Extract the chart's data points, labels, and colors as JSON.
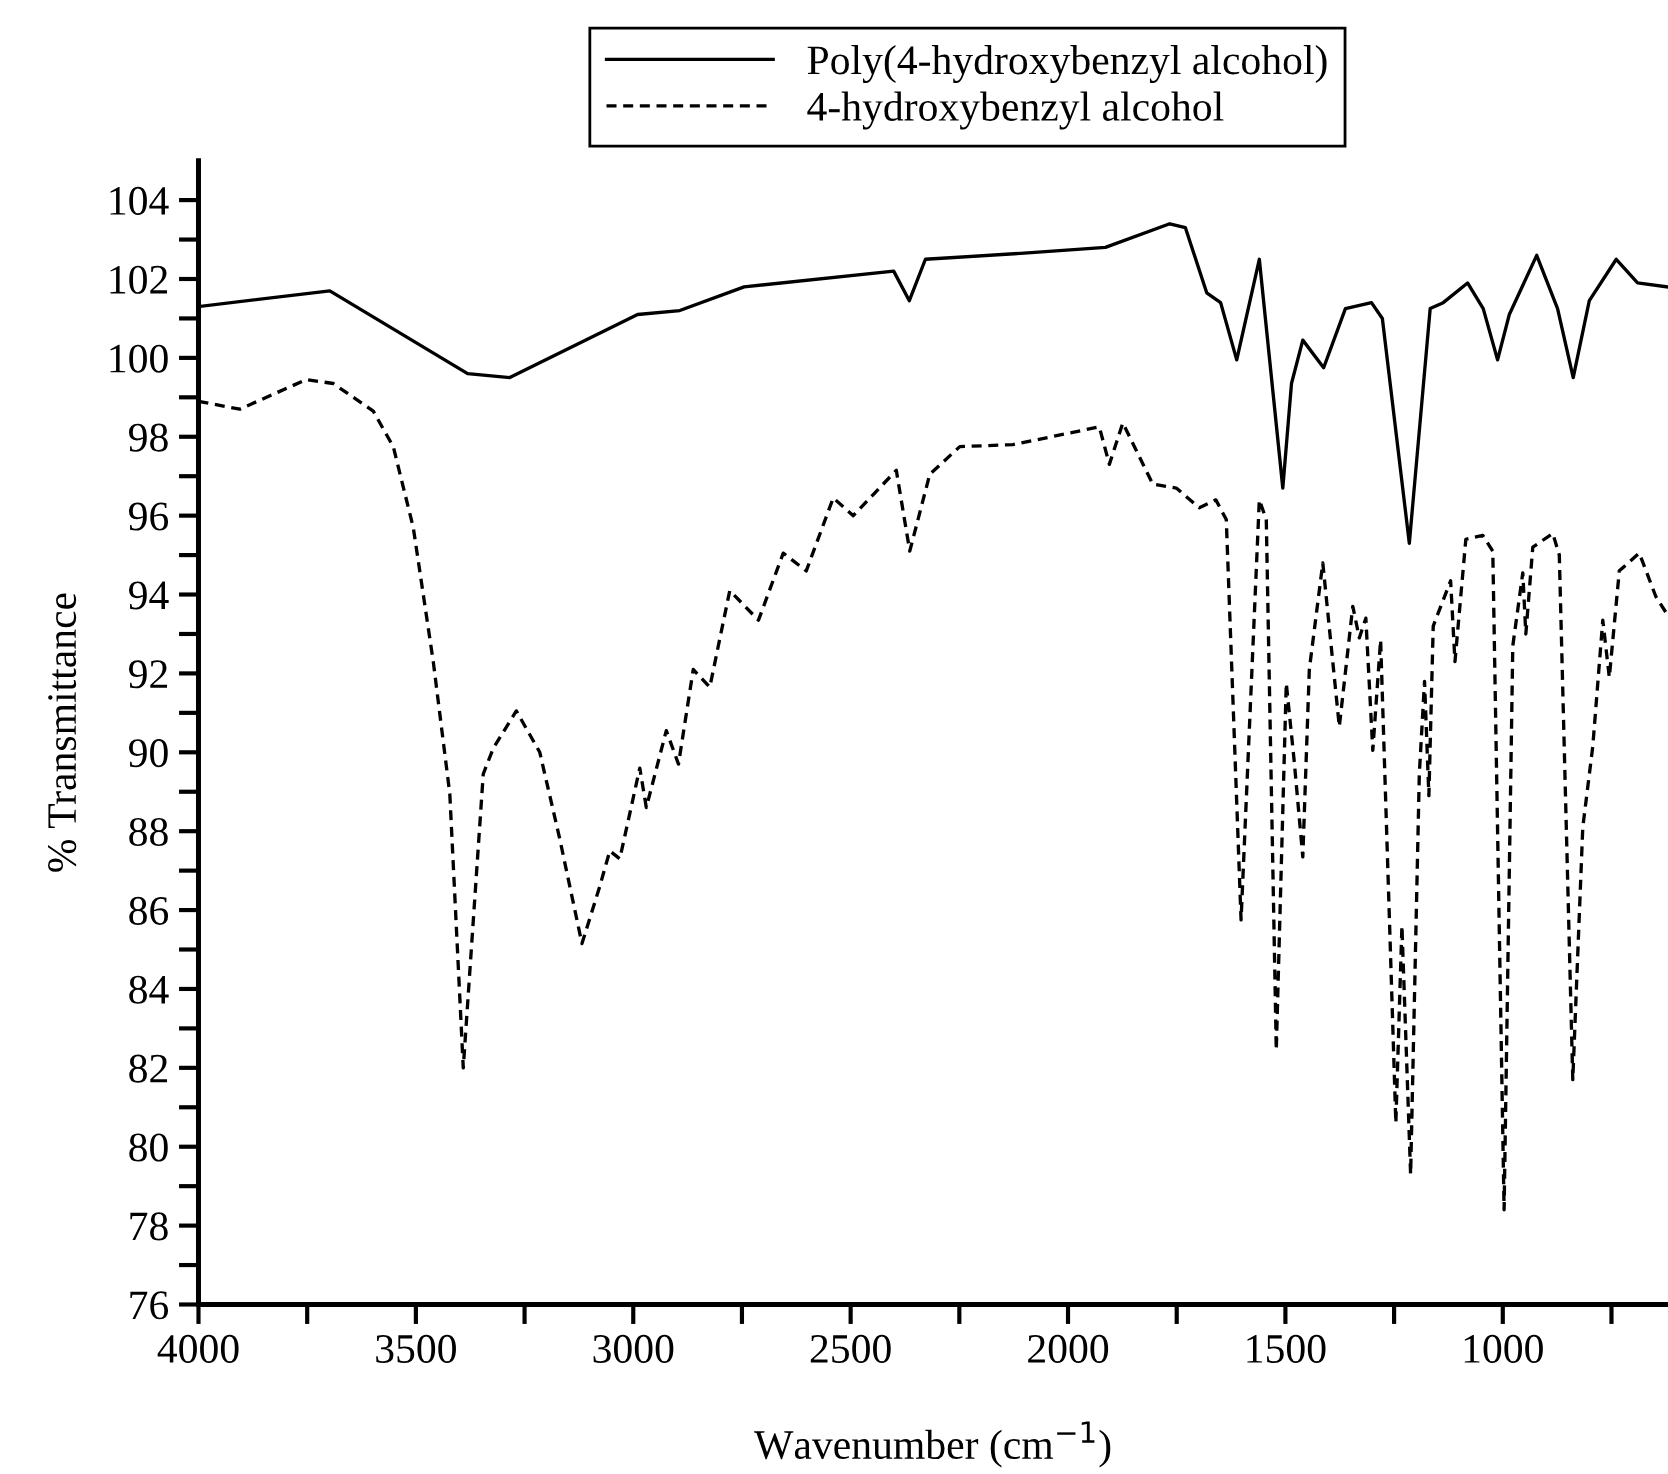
{
  "chart_data": {
    "type": "line",
    "xlabel": "Wavenumber (cm$^{−1}$)",
    "ylabel": "% Transmittance",
    "xlim": [
      4000,
      620
    ],
    "ylim": [
      76,
      105
    ],
    "xticks": [
      4000,
      {
        "value": 3750,
        "label": null
      },
      3500,
      {
        "value": 3250,
        "label": null
      },
      3000,
      {
        "value": 2750,
        "label": null
      },
      2500,
      {
        "value": 2250,
        "label": null
      },
      2000,
      {
        "value": 1750,
        "label": null
      },
      1500,
      {
        "value": 1250,
        "label": null
      },
      1000,
      {
        "value": 750,
        "label": null
      }
    ],
    "yticks": [
      76,
      {
        "value": 77,
        "label": null
      },
      78,
      {
        "value": 79,
        "label": null
      },
      80,
      {
        "value": 81,
        "label": null
      },
      82,
      {
        "value": 83,
        "label": null
      },
      84,
      {
        "value": 85,
        "label": null
      },
      86,
      {
        "value": 87,
        "label": null
      },
      88,
      {
        "value": 89,
        "label": null
      },
      90,
      {
        "value": 91,
        "label": null
      },
      92,
      {
        "value": 93,
        "label": null
      },
      94,
      {
        "value": 95,
        "label": null
      },
      96,
      {
        "value": 97,
        "label": null
      },
      98,
      {
        "value": 99,
        "label": null
      },
      100,
      {
        "value": 101,
        "label": null
      },
      102,
      {
        "value": 103,
        "label": null
      },
      104
    ],
    "grid": false,
    "legend": "top",
    "marker": "none",
    "series": [
      {
        "name": "Poly(4-hydroxybenzyl alcohol)",
        "color": "#000000",
        "line_style": "solid",
        "x": [
          4000,
          3698,
          3381,
          3284,
          2990,
          2893,
          2745,
          2401,
          2365,
          2328,
          2109,
          1914,
          1766,
          1730,
          1681,
          1649,
          1612,
          1560,
          1506,
          1486,
          1460,
          1412,
          1362,
          1302,
          1277,
          1215,
          1167,
          1137,
          1081,
          1045,
          1012,
          985,
          922,
          874,
          838,
          801,
          739,
          690,
          622
        ],
        "values": [
          101.3,
          101.7,
          99.6,
          99.5,
          101.1,
          101.2,
          101.8,
          102.2,
          101.45,
          102.5,
          102.65,
          102.8,
          103.4,
          103.3,
          101.65,
          101.4,
          99.95,
          102.5,
          96.7,
          99.35,
          100.45,
          99.75,
          101.25,
          101.4,
          101.0,
          95.3,
          101.25,
          101.4,
          101.9,
          101.25,
          99.95,
          101.1,
          102.6,
          101.25,
          99.5,
          101.45,
          102.5,
          101.9,
          101.8
        ]
      },
      {
        "name": "4-hydroxybenzyl alcohol",
        "color": "#000000",
        "line_style": "dashed",
        "x": [
          4000,
          3905,
          3752,
          3690,
          3598,
          3552,
          3506,
          3460,
          3422,
          3391,
          3345,
          3322,
          3269,
          3215,
          3169,
          3118,
          3077,
          3054,
          3031,
          2985,
          2970,
          2924,
          2896,
          2862,
          2824,
          2778,
          2712,
          2655,
          2602,
          2540,
          2494,
          2395,
          2364,
          2318,
          2249,
          2127,
          1928,
          1905,
          1874,
          1805,
          1751,
          1698,
          1660,
          1636,
          1602,
          1560,
          1544,
          1521,
          1498,
          1480,
          1460,
          1445,
          1414,
          1376,
          1345,
          1330,
          1315,
          1299,
          1281,
          1246,
          1232,
          1212,
          1192,
          1180,
          1170,
          1160,
          1120,
          1110,
          1085,
          1046,
          1023,
          997,
          977,
          954,
          947,
          931,
          885,
          870,
          839,
          816,
          793,
          770,
          755,
          732,
          686,
          648,
          622
        ],
        "values": [
          98.9,
          98.7,
          99.45,
          99.35,
          98.65,
          97.75,
          95.7,
          92.3,
          88.95,
          82.0,
          89.45,
          90.1,
          91.05,
          90.0,
          87.8,
          85.15,
          86.6,
          87.5,
          87.3,
          89.6,
          88.6,
          90.55,
          89.7,
          92.1,
          91.65,
          94.1,
          93.35,
          95.05,
          94.6,
          96.45,
          96.0,
          97.15,
          95.1,
          97.05,
          97.75,
          97.8,
          98.25,
          97.3,
          98.35,
          96.8,
          96.7,
          96.2,
          96.4,
          95.9,
          85.75,
          96.4,
          95.9,
          82.45,
          91.75,
          89.8,
          87.35,
          92.1,
          94.8,
          90.65,
          93.7,
          92.9,
          93.4,
          90.05,
          92.85,
          80.6,
          85.6,
          79.3,
          89.45,
          91.8,
          88.9,
          93.2,
          94.35,
          92.3,
          95.4,
          95.5,
          95.1,
          78.4,
          92.7,
          94.55,
          93.0,
          95.2,
          95.55,
          95.0,
          81.7,
          88.1,
          90.15,
          93.35,
          91.9,
          94.6,
          95.05,
          93.95,
          93.5
        ]
      }
    ]
  }
}
